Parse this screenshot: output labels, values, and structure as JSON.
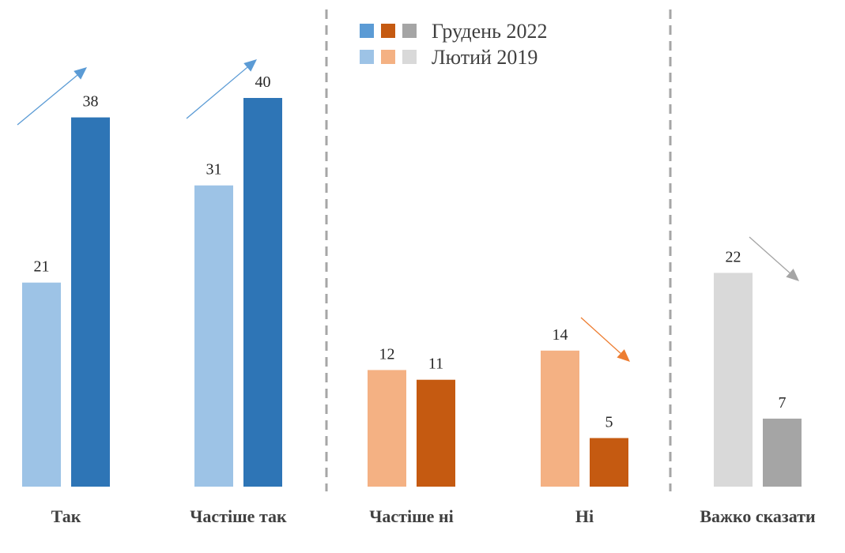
{
  "chart_data": {
    "type": "bar",
    "title": "",
    "xlabel": "",
    "ylabel": "",
    "ylim": [
      0,
      50
    ],
    "grid": false,
    "legend_placement": "top-center",
    "categories": [
      "Так",
      "Частіше так",
      "Частіше ні",
      "Ні",
      "Важко сказати"
    ],
    "series": [
      {
        "name": "Лютий 2019",
        "values": [
          21,
          31,
          12,
          14,
          22
        ],
        "colors": [
          "#9DC3E6",
          "#9DC3E6",
          "#F4B183",
          "#F4B183",
          "#D9D9D9"
        ]
      },
      {
        "name": "Грудень 2022",
        "values": [
          38,
          40,
          11,
          5,
          7
        ],
        "colors": [
          "#2E75B6",
          "#2E75B6",
          "#C55A11",
          "#C55A11",
          "#A5A5A5"
        ]
      }
    ],
    "legend": [
      {
        "label": "Грудень 2022",
        "colors": [
          "#5B9BD5",
          "#C55A11",
          "#A5A5A5"
        ]
      },
      {
        "label": "Лютий 2019",
        "colors": [
          "#9DC3E6",
          "#F4B183",
          "#D9D9D9"
        ]
      }
    ],
    "trend_arrows": [
      {
        "category": "Так",
        "direction": "up",
        "color": "#5B9BD5"
      },
      {
        "category": "Частіше так",
        "direction": "up",
        "color": "#5B9BD5"
      },
      {
        "category": "Ні",
        "direction": "down",
        "color": "#ED7D31"
      },
      {
        "category": "Важко сказати",
        "direction": "down",
        "color": "#A5A5A5"
      }
    ],
    "separators_after": [
      "Частіше так",
      "Ні"
    ]
  }
}
